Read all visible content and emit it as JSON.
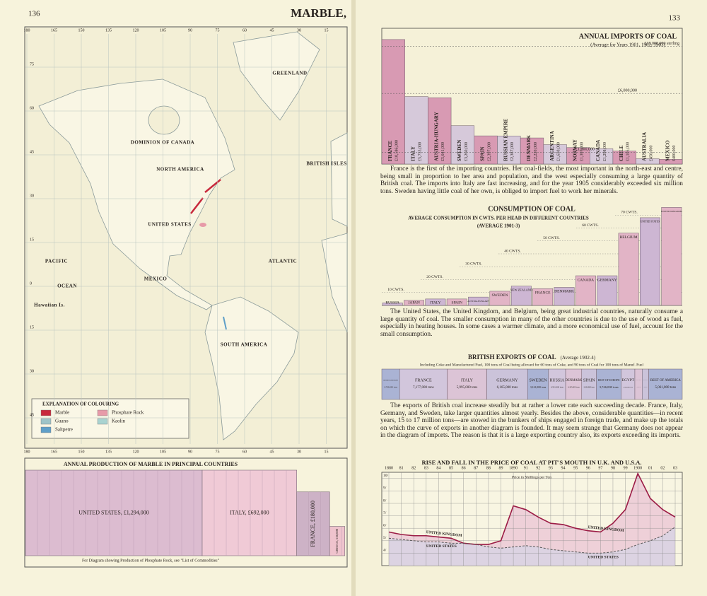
{
  "left_page": {
    "page_number": "136",
    "running_title": "MARBLE,",
    "map": {
      "longitudes": [
        "180",
        "165",
        "150",
        "135",
        "120",
        "105",
        "90",
        "75",
        "60",
        "45",
        "30",
        "15"
      ],
      "latitudes": [
        "75",
        "60",
        "45",
        "30",
        "15",
        "0",
        "15",
        "30",
        "45"
      ],
      "labels": [
        "GREENLAND",
        "DOMINION OF CANADA",
        "NORTH AMERICA",
        "UNITED STATES",
        "MEXICO",
        "SOUTH AMERICA",
        "PACIFIC",
        "OCEAN",
        "ATLANTIC",
        "BRITISH ISLES",
        "Hawaiian Is."
      ],
      "legend": {
        "title": "EXPLANATION OF COLOURING",
        "items": [
          {
            "label": "Marble",
            "color": "#c8283c"
          },
          {
            "label": "Phosphate Rock",
            "color": "#e79aa8"
          },
          {
            "label": "Guano",
            "color": "#9fc4c8"
          },
          {
            "label": "Kaolin",
            "color": "#a9d3d0"
          },
          {
            "label": "Saltpetre",
            "color": "#5f9fc8"
          }
        ]
      }
    }
  },
  "right_page": {
    "page_number": "133"
  },
  "chart_data": [
    {
      "type": "block",
      "title": "ANNUAL PRODUCTION OF MARBLE IN PRINCIPAL COUNTRIES",
      "values": [
        1294000,
        692000,
        180000,
        38000
      ],
      "value_labels": [
        "UNITED STATES, £1,294,000",
        "ITALY, £692,000",
        "FRANCE, £180,000",
        "GREECE, £38,000"
      ],
      "colors": [
        "#dcbcd0",
        "#f0cad6",
        "#cdb2c6",
        "#efc3cd"
      ],
      "note": "For Diagram showing Production of Phosphate Rock, see \"List of Commodities\""
    },
    {
      "type": "bar",
      "title": "ANNUAL IMPORTS OF COAL",
      "subtitle": "(Average for Years 1901, 1902, 1903)",
      "categories": [
        "FRANCE",
        "ITALY",
        "AUSTRIA-HUNGARY",
        "SWEDEN",
        "SPAIN",
        "RUSSIAN EMPIRE",
        "DENMARK",
        "ARGENTINA",
        "NORWAY",
        "CANADA",
        "CHILE",
        "AUSTRALIA",
        "MEXICO"
      ],
      "values": [
        10586000,
        5735000,
        5641000,
        3260000,
        2397000,
        2387000,
        2220000,
        1650000,
        1397000,
        1298000,
        1105000,
        450000,
        400000
      ],
      "value_labels": [
        "£10,586,000",
        "£5,735,000",
        "£5,641,000",
        "£3,260,000",
        "£2,397,000",
        "£2,387,000",
        "£2,220,000",
        "£1,650,000",
        "£1,397,000",
        "£1,298,000",
        "£1,105,000",
        "£450,000",
        "£400,000"
      ],
      "ylim": [
        0,
        11000000
      ],
      "yticks": [
        {
          "value": 10000000,
          "label": "£10,000,000 sterling"
        },
        {
          "value": 6000000,
          "label": "£6,000,000"
        },
        {
          "value": 1000000,
          "label": "£1,000,000"
        }
      ],
      "colors": [
        "#d89ab3",
        "#d6c9da"
      ],
      "note": "France is the first of the importing countries. Her coal-fields, the most important in the north-east and centre, being small in proportion to her area and population, and the west especially consuming a large quantity of British coal. The imports into Italy are fast increasing, and for the year 1905 considerably exceeded six million tons. Sweden having little coal of her own, is obliged to import fuel to work her minerals."
    },
    {
      "type": "bar",
      "title": "CONSUMPTION OF COAL",
      "subtitle": "AVERAGE CONSUMPTION IN CWTS. PER HEAD IN DIFFERENT COUNTRIES",
      "subtitle2": "(AVERAGE 1901-3)",
      "categories": [
        "RUSSIA",
        "JAPAN",
        "ITALY",
        "SPAIN",
        "AUSTRIA-HUNGARY",
        "SWEDEN",
        "NEW ZEALAND",
        "FRANCE",
        "DENMARK",
        "CANADA",
        "GERMANY",
        "BELGIUM",
        "UNITED STATES",
        "UNITED KINGDOM"
      ],
      "values": [
        2,
        4,
        5,
        5,
        6.5,
        11,
        15,
        13,
        14,
        23,
        23,
        56,
        68,
        76
      ],
      "ylim": [
        0,
        80
      ],
      "yticks": [
        {
          "value": 10,
          "label": "10 CWTS."
        },
        {
          "value": 20,
          "label": "20 CWTS."
        },
        {
          "value": 30,
          "label": "30 CWTS."
        },
        {
          "value": 40,
          "label": "40 CWTS."
        },
        {
          "value": 50,
          "label": "50 CWTS."
        },
        {
          "value": 60,
          "label": "60 CWTS."
        },
        {
          "value": 70,
          "label": "70 CWTS."
        }
      ],
      "colors": [
        "#cdb6d3",
        "#e2b4c6"
      ],
      "note": "The United States, the United Kingdom, and Belgium, being great industrial countries, naturally consume a large quantity of coal. The smaller consumption in many of the other countries is due to the use of wood as fuel, especially in heating houses. In some cases a warmer climate, and a more economical use of fuel, account for the small consumption."
    },
    {
      "type": "hstack",
      "title": "BRITISH EXPORTS OF COAL",
      "subtitle": "(Average 1902-4)",
      "description": "Including Coke and Manufactured Fuel, 100 tons of Coal being allowed for 60 tons of Coke, and 90 tons of Coal for 100 tons of Manuf. Fuel",
      "categories": [
        "BRITISH POSSESSIONS",
        "FRANCE",
        "ITALY",
        "GERMANY",
        "SWEDEN",
        "RUSSIA",
        "DENMARK",
        "SPAIN",
        "REST OF EUROPE",
        "EGYPT",
        "REST OF AFRICA",
        "UNITED STATES",
        "REST OF AMERICA"
      ],
      "values": [
        2700000,
        7177000,
        5995000,
        6165000,
        3161000,
        2591000,
        2425000,
        2234000,
        3746000,
        2056000,
        1100000,
        1000000,
        5061000
      ],
      "value_labels": [
        "2,700,000 tons",
        "7,177,000 tons",
        "5,995,000 tons",
        "6,165,000 tons",
        "3,161,000 tons",
        "2,591,000 tons",
        "2,425,000 tons",
        "2,234,000 tons",
        "3,746,000 tons",
        "2,056,000 tons",
        "1,100,000 tons",
        "1,000,000 tons",
        "5,061,000 tons"
      ],
      "colors": [
        "#aab3d4",
        "#d2c6dc",
        "#dcc4d6",
        "#cbc3da"
      ],
      "note": "The exports of British coal increase steadily but at rather a lower rate each succeeding decade. France, Italy, Germany, and Sweden, take larger quantities almost yearly. Besides the above, considerable quantities—in recent years, 15 to 17 million tons—are stowed in the bunkers of ships engaged in foreign trade, and make up the totals on which the curve of exports in another diagram is founded. It may seem strange that Germany does not appear in the diagram of imports. The reason is that it is a large exporting country also, its exports exceeding its imports."
    },
    {
      "type": "line",
      "title": "RISE AND FALL IN THE PRICE OF COAL AT PIT'S MOUTH IN U.K. AND U.S.A.",
      "y_label": "Price in Shillings per Ton",
      "categories": [
        "1880",
        "81",
        "82",
        "83",
        "84",
        "85",
        "86",
        "87",
        "88",
        "89",
        "1890",
        "91",
        "92",
        "93",
        "94",
        "95",
        "96",
        "97",
        "98",
        "99",
        "1900",
        "01",
        "02",
        "03"
      ],
      "series": [
        {
          "name": "UNITED KINGDOM",
          "color": "#9b1b45",
          "fill": "#eed0d8",
          "values": [
            5.7,
            5.5,
            5.4,
            5.4,
            5.3,
            5.2,
            4.8,
            4.7,
            4.7,
            5.0,
            7.8,
            7.5,
            6.9,
            6.4,
            6.3,
            6.0,
            5.8,
            5.7,
            6.4,
            7.5,
            10.4,
            8.4,
            7.5,
            6.9
          ]
        },
        {
          "name": "UNITED STATES",
          "color": "#555555",
          "fill": "#dcd3e2",
          "values": [
            5.2,
            5.1,
            5.0,
            4.9,
            4.9,
            4.8,
            4.8,
            4.7,
            4.5,
            4.4,
            4.5,
            4.6,
            4.5,
            4.3,
            4.2,
            4.1,
            4.0,
            4.0,
            4.1,
            4.3,
            4.7,
            5.0,
            5.4,
            6.1
          ]
        }
      ],
      "ylim": [
        3,
        10.5
      ],
      "yticks": [
        {
          "value": 4,
          "label": "4/"
        },
        {
          "value": 5,
          "label": "5/"
        },
        {
          "value": 6,
          "label": "6/"
        },
        {
          "value": 7,
          "label": "7/"
        },
        {
          "value": 8,
          "label": "8/"
        },
        {
          "value": 9,
          "label": "9/"
        },
        {
          "value": 10,
          "label": "10/"
        }
      ],
      "grid": true
    }
  ]
}
